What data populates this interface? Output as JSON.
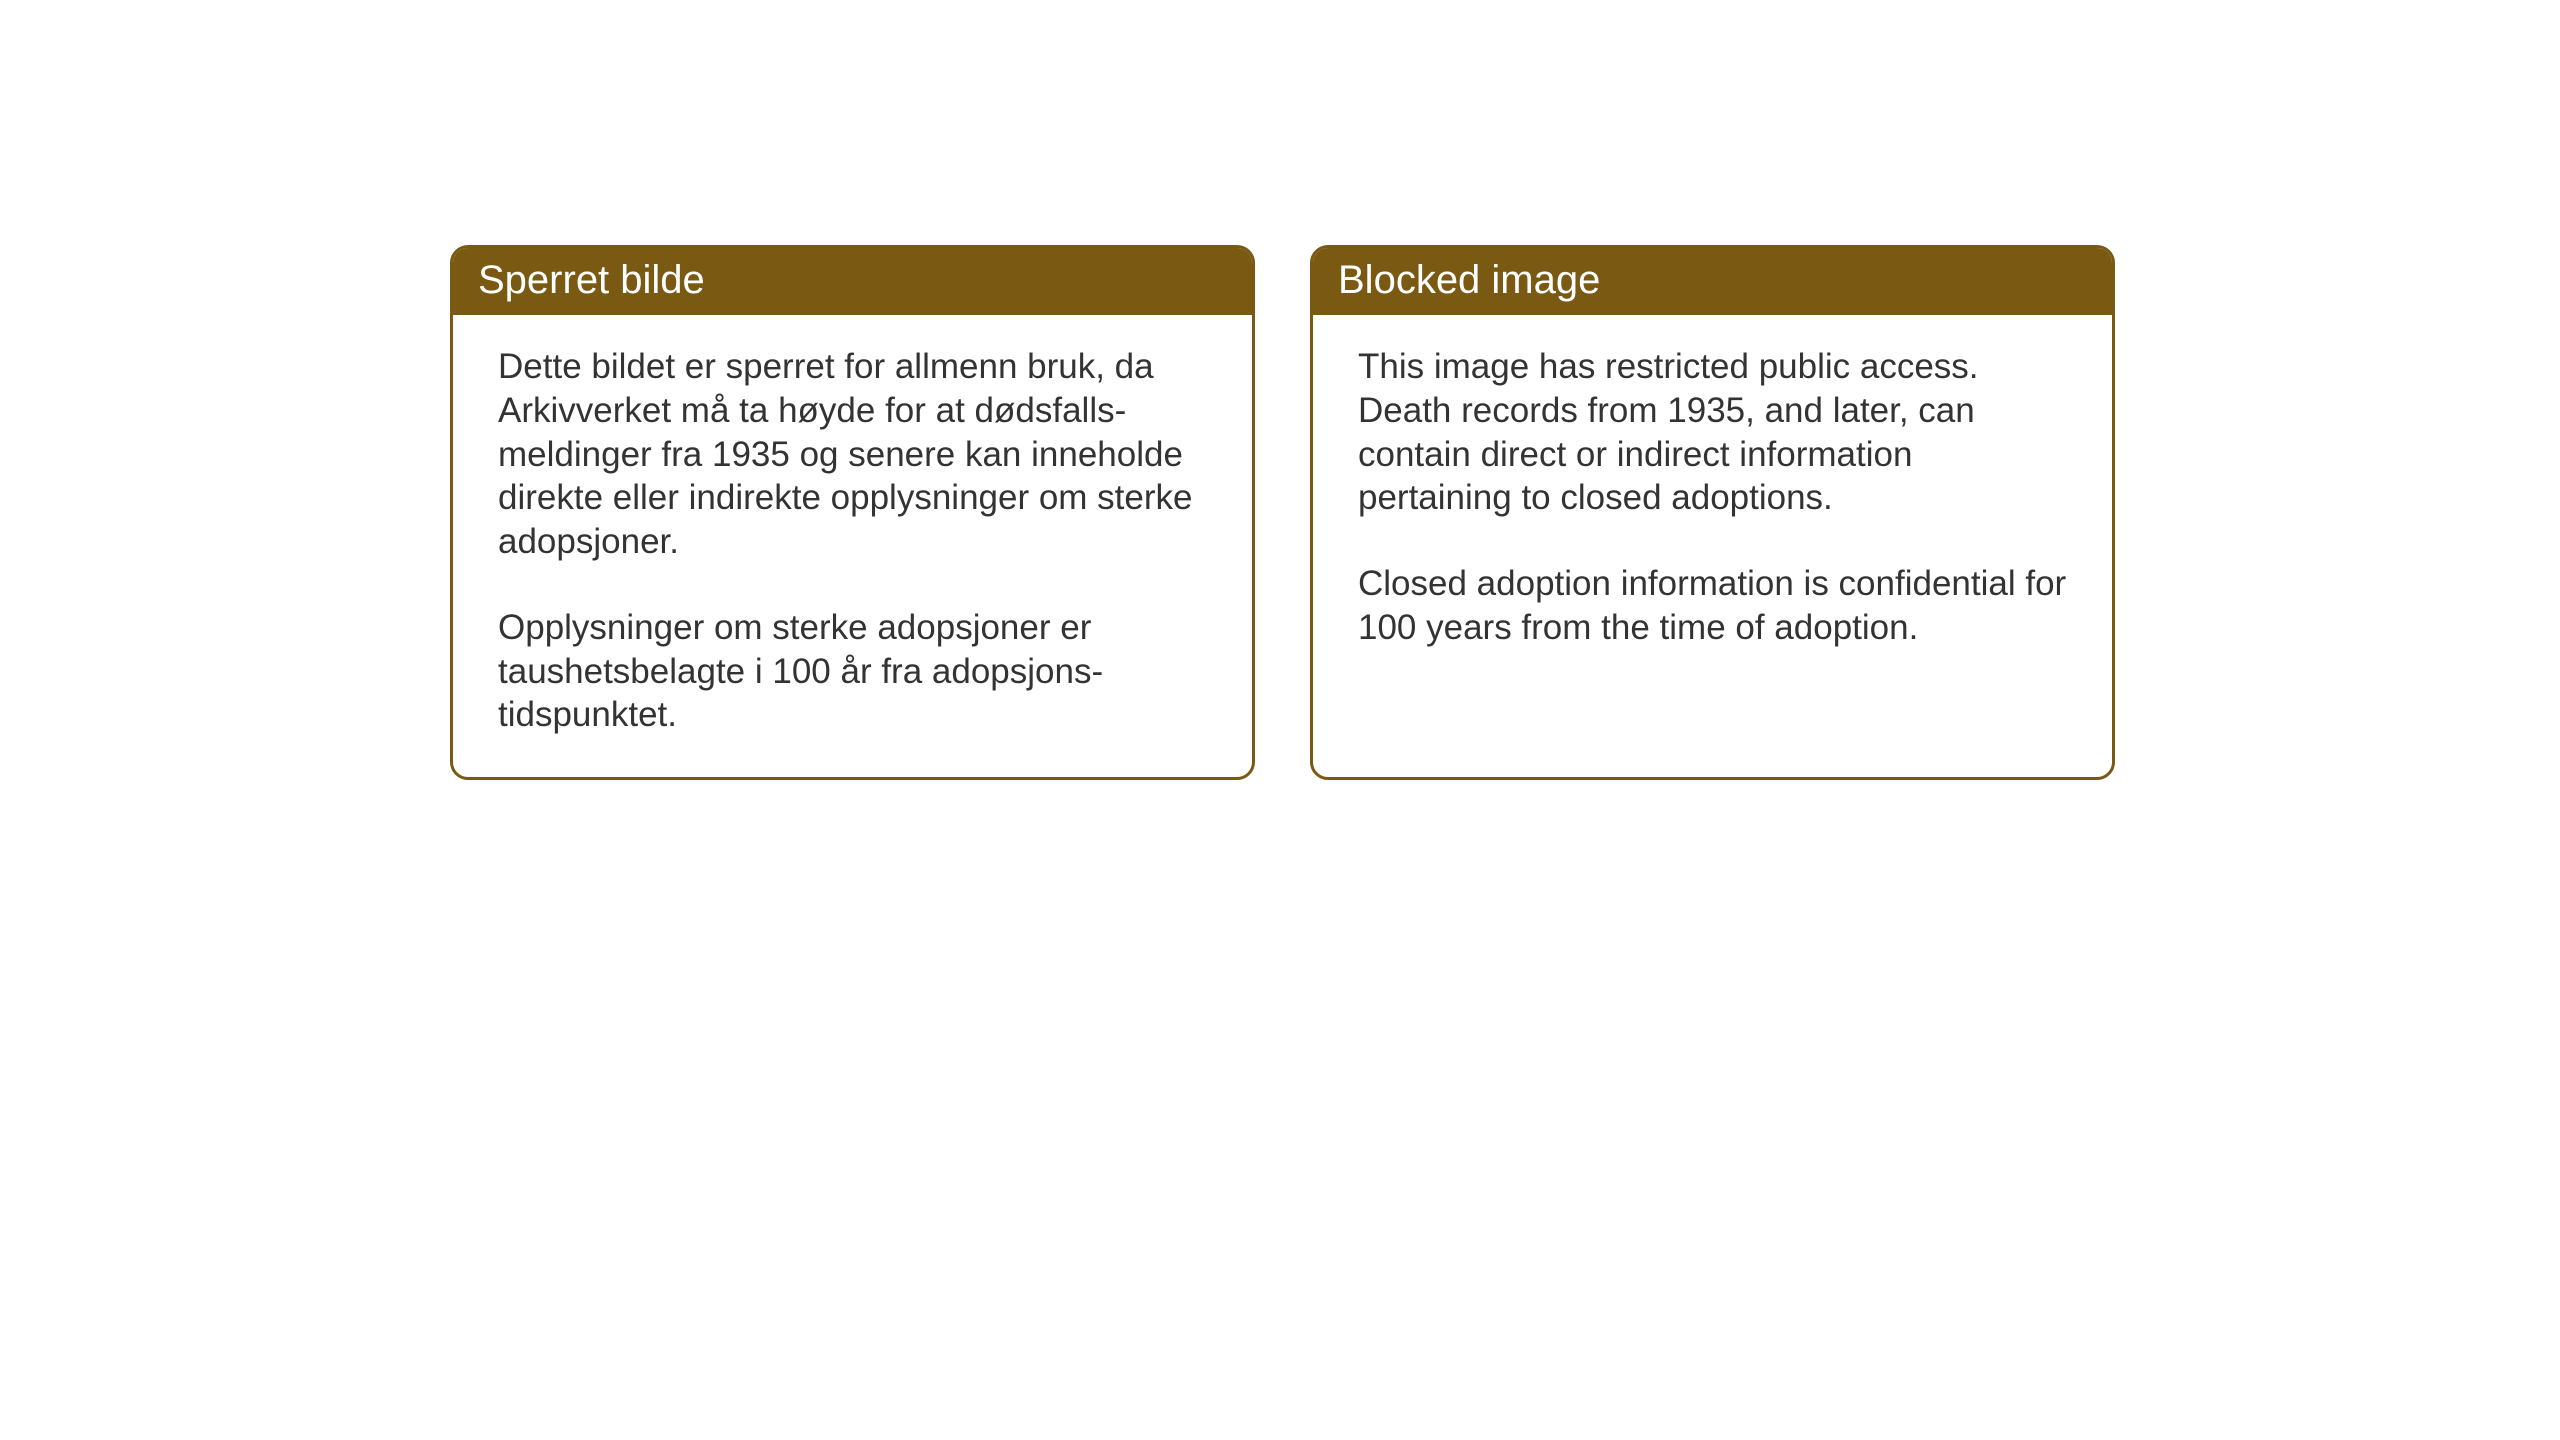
{
  "panels": {
    "norwegian": {
      "title": "Sperret bilde",
      "paragraph1": "Dette bildet er sperret for allmenn bruk, da Arkivverket må ta høyde for at dødsfalls-meldinger fra 1935 og senere kan inneholde direkte eller indirekte opplysninger om sterke adopsjoner.",
      "paragraph2": "Opplysninger om sterke adopsjoner er taushetsbelagte i 100 år fra adopsjons-tidspunktet."
    },
    "english": {
      "title": "Blocked image",
      "paragraph1": "This image has restricted public access. Death records from 1935, and later, can contain direct or indirect information pertaining to closed adoptions.",
      "paragraph2": "Closed adoption information is confidential for 100 years from the time of adoption."
    }
  },
  "styling": {
    "header_background_color": "#7a5a13",
    "header_text_color": "#ffffff",
    "border_color": "#7a5a13",
    "body_text_color": "#333333",
    "background_color": "#ffffff",
    "header_fontsize": 40,
    "body_fontsize": 35,
    "border_radius": 18,
    "border_width": 3
  }
}
